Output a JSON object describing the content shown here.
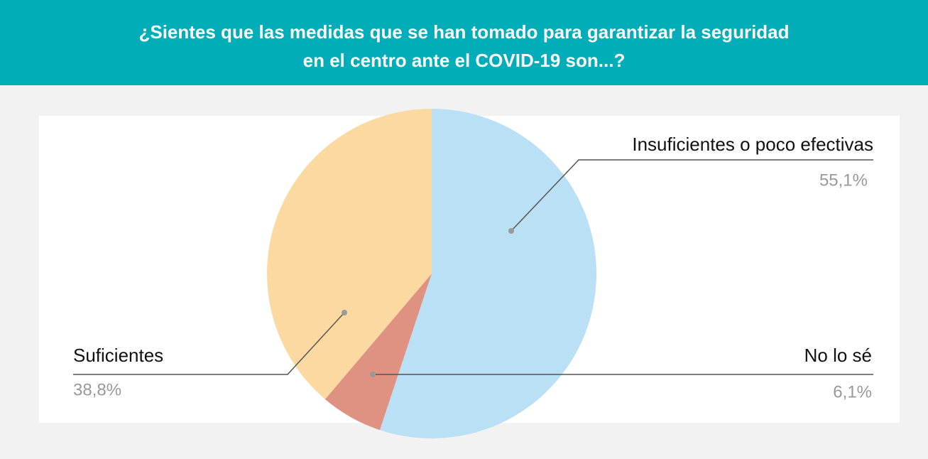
{
  "chart_data": {
    "type": "pie",
    "title": [
      "¿Sientes que las medidas que se han tomado para garantizar la seguridad",
      "en el centro ante el COVID-19 son...?"
    ],
    "categories": [
      "Insuficientes o poco efectivas",
      "No lo sé",
      "Suficientes"
    ],
    "values": [
      55.1,
      6.1,
      38.8
    ],
    "value_labels": [
      "55,1%",
      "6,1%",
      "38,8%"
    ],
    "colors": [
      "#b9e0f4",
      "#e09282",
      "#fdd9a2"
    ]
  }
}
